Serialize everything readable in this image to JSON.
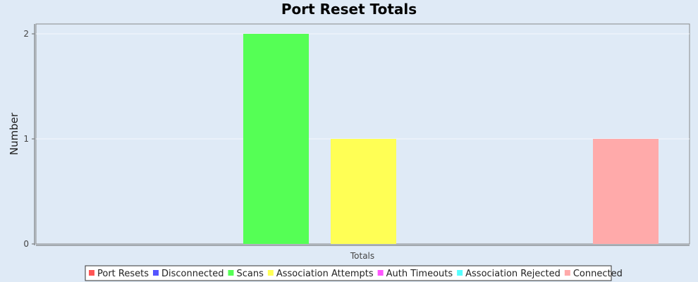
{
  "chart_data": {
    "type": "bar",
    "title": "Port Reset Totals",
    "xlabel": "",
    "ylabel": "Number",
    "categories": [
      "Totals"
    ],
    "ylim": [
      0,
      2
    ],
    "yticks": [
      0,
      1,
      2
    ],
    "grid": true,
    "legend_position": "bottom",
    "series": [
      {
        "name": "Port Resets",
        "values": [
          0
        ],
        "color": "#ff5555"
      },
      {
        "name": "Disconnected",
        "values": [
          0
        ],
        "color": "#5555ff"
      },
      {
        "name": "Scans",
        "values": [
          2
        ],
        "color": "#55ff55"
      },
      {
        "name": "Association Attempts",
        "values": [
          1
        ],
        "color": "#ffff55"
      },
      {
        "name": "Auth Timeouts",
        "values": [
          0
        ],
        "color": "#ff55ff"
      },
      {
        "name": "Association Rejected",
        "values": [
          0
        ],
        "color": "#55ffff"
      },
      {
        "name": "Connected",
        "values": [
          1
        ],
        "color": "#ffaaaa"
      }
    ]
  }
}
